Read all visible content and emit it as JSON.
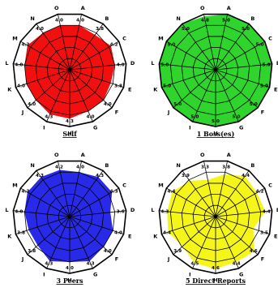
{
  "chart_data": [
    {
      "type": "radar",
      "title": "Self",
      "color": "#f20f0f",
      "labels": [
        "A",
        "B",
        "C",
        "D",
        "E",
        "F",
        "G",
        "H",
        "I",
        "J",
        "K",
        "L",
        "M",
        "N",
        "O"
      ],
      "values": [
        4.0,
        3.8,
        4.2,
        4.0,
        3.8,
        4.0,
        4.0,
        4.3,
        4.3,
        4.0,
        4.0,
        4.0,
        4.3,
        4.0,
        4.0
      ],
      "value_labels": [
        "4.0",
        "3.8",
        "4.2",
        "4.0",
        "3.8",
        "4.0",
        "4.0",
        "4.3",
        "4.3",
        "4.0",
        "4.0",
        "4.0",
        "4.3",
        "4.0",
        "4.0"
      ],
      "rlim": [
        0,
        5
      ]
    },
    {
      "type": "radar",
      "title": "1 Boss(es)",
      "color": "#2fd42c",
      "labels": [
        "A",
        "B",
        "C",
        "D",
        "E",
        "F",
        "G",
        "H",
        "I",
        "J",
        "K",
        "L",
        "M",
        "N",
        "O"
      ],
      "values": [
        5.0,
        5.0,
        5.0,
        5.0,
        5.0,
        5.0,
        5.0,
        5.0,
        5.0,
        5.0,
        5.0,
        5.0,
        5.0,
        5.0,
        4.8
      ],
      "value_labels": [
        "5.0",
        "5.0",
        "5.0",
        "5.0",
        "5.0",
        "5.0",
        "5.0",
        "5.0",
        "5.0",
        "5.0",
        "5.0",
        "5.0",
        "5.0",
        "5.0",
        "4.8"
      ],
      "rlim": [
        0,
        5
      ]
    },
    {
      "type": "radar",
      "title": "3 Peers",
      "color": "#2929e8",
      "labels": [
        "A",
        "B",
        "C",
        "D",
        "E",
        "F",
        "G",
        "H",
        "I",
        "J",
        "K",
        "L",
        "M",
        "N",
        "O"
      ],
      "values": [
        4.0,
        4.3,
        4.3,
        3.6,
        4.0,
        4.0,
        4.3,
        4.0,
        4.3,
        3.8,
        3.8,
        4.0,
        4.3,
        4.3,
        4.2
      ],
      "value_labels": [
        "4.0",
        "4.3",
        "4.3",
        "3.6",
        "4.0",
        "4.0",
        "4.3",
        "4.0",
        "4.3",
        "3.8",
        "3.8",
        "4.0",
        "4.3",
        "4.3",
        "4.2"
      ],
      "rlim": [
        0,
        5
      ]
    },
    {
      "type": "radar",
      "title": "5 Direct Reports",
      "color": "#f5f51a",
      "labels": [
        "A",
        "B",
        "C",
        "D",
        "E",
        "F",
        "G",
        "H",
        "I",
        "J",
        "K",
        "L",
        "M",
        "N",
        "O"
      ],
      "values": [
        3.8,
        4.4,
        4.2,
        4.4,
        3.5,
        4.6,
        4.4,
        4.6,
        4.5,
        3.9,
        4.4,
        4.3,
        4.4,
        3.9,
        3.3
      ],
      "value_labels": [
        "3.8",
        "4.4",
        "4.2",
        "4.4",
        "3.5",
        "4.6",
        "4.4",
        "4.6",
        "4.5",
        "3.9",
        "4.4",
        "4.3",
        "4.4",
        "3.9",
        "3.3"
      ],
      "rlim": [
        0,
        5
      ]
    }
  ]
}
